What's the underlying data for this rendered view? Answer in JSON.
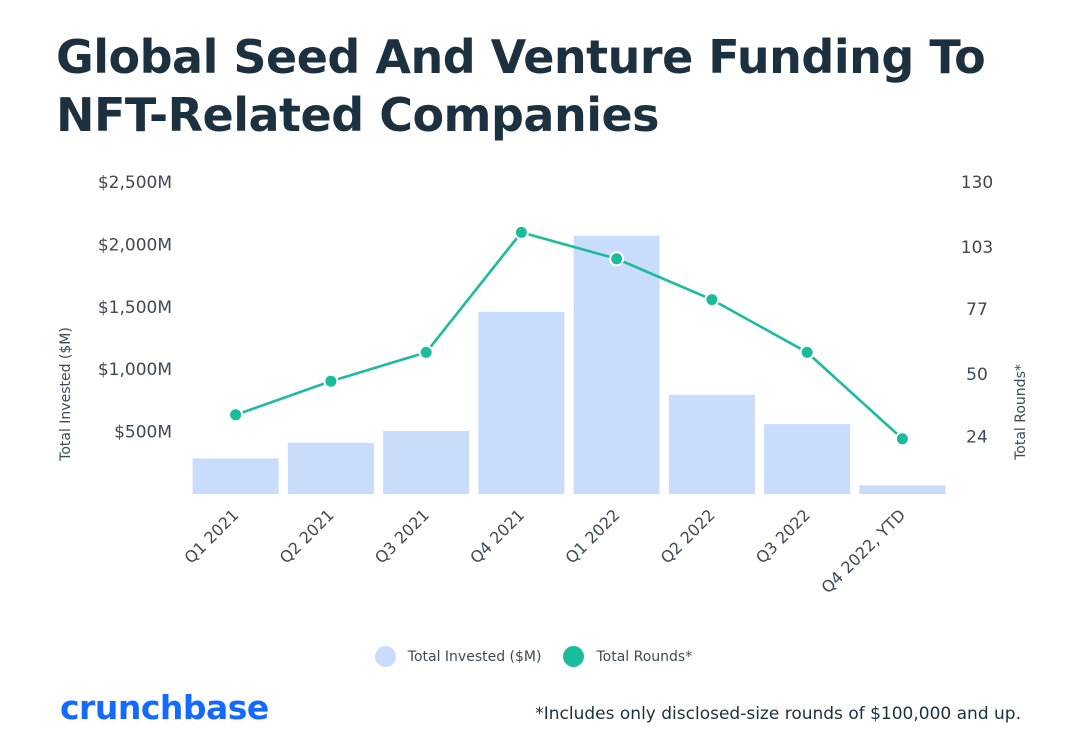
{
  "colors": {
    "title": "#1d3040",
    "bar": "#cadcfb",
    "line": "#1abc9c",
    "brand": "#146aff",
    "text": "#3d4a55"
  },
  "legend": {
    "invested_label": "Total Invested ($M)",
    "rounds_label": "Total Rounds*"
  },
  "brand": {
    "name": "crunchbase"
  },
  "footnote": "*Includes only disclosed-size rounds of $100,000 and up.",
  "chart_data": {
    "type": "bar",
    "title": "Global Seed And Venture Funding To NFT-Related Companies",
    "categories": [
      "Q1 2021",
      "Q2 2021",
      "Q3 2021",
      "Q4 2021",
      "Q1 2022",
      "Q2 2022",
      "Q3 2022",
      "Q4 2022, YTD"
    ],
    "series": [
      {
        "name": "Total Invested ($M)",
        "type": "bar",
        "axis": "left",
        "values": [
          285,
          410,
          505,
          1460,
          2070,
          795,
          560,
          70
        ]
      },
      {
        "name": "Total Rounds*",
        "type": "line",
        "axis": "right",
        "values": [
          33,
          47,
          59,
          109,
          98,
          81,
          59,
          23
        ]
      }
    ],
    "ylabel": "Total Invested ($M)",
    "ylabel_right": "Total Rounds*",
    "ylim": [
      0,
      2500
    ],
    "ylim_right": [
      0,
      130
    ],
    "yticks_left": [
      500,
      1000,
      1500,
      2000,
      2500
    ],
    "ytick_labels_left": [
      "$500M",
      "$1,000M",
      "$1,500M",
      "$2,000M",
      "$2,500M"
    ],
    "yticks_right": [
      24,
      50,
      77,
      103,
      130
    ],
    "ytick_labels_right": [
      "24",
      "50",
      "77",
      "103",
      "130"
    ],
    "grid": false,
    "legend_position": "bottom-center"
  }
}
